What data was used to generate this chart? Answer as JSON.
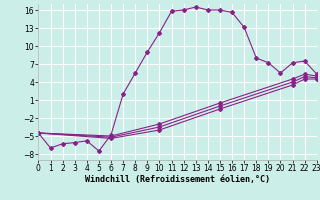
{
  "xlabel": "Windchill (Refroidissement éolien,°C)",
  "background_color": "#cceee8",
  "grid_color": "#ffffff",
  "line_color": "#882288",
  "series1_x": [
    0,
    1,
    2,
    3,
    4,
    5,
    6,
    7,
    8,
    9,
    10,
    11,
    12,
    13,
    14,
    15,
    16,
    17,
    18,
    19,
    20,
    21,
    22,
    23
  ],
  "series1_y": [
    -4.5,
    -7.0,
    -6.3,
    -6.1,
    -5.8,
    -7.5,
    -4.8,
    2.0,
    5.5,
    9.0,
    12.2,
    15.8,
    16.0,
    16.5,
    16.0,
    16.0,
    15.6,
    13.1,
    8.0,
    7.2,
    5.5,
    7.2,
    7.5,
    5.3
  ],
  "series2_x": [
    0,
    6,
    10,
    15,
    21,
    22,
    23
  ],
  "series2_y": [
    -4.5,
    -5.0,
    -3.0,
    0.5,
    4.5,
    5.3,
    5.0
  ],
  "series3_x": [
    0,
    6,
    10,
    15,
    21,
    22,
    23
  ],
  "series3_y": [
    -4.5,
    -5.2,
    -3.5,
    0.0,
    4.0,
    4.9,
    4.7
  ],
  "series4_x": [
    0,
    6,
    10,
    15,
    21,
    22,
    23
  ],
  "series4_y": [
    -4.5,
    -5.4,
    -4.0,
    -0.5,
    3.5,
    4.5,
    4.5
  ],
  "ylim": [
    -9,
    17
  ],
  "xlim": [
    0,
    23
  ],
  "yticks": [
    -8,
    -5,
    -2,
    1,
    4,
    7,
    10,
    13,
    16
  ],
  "xticks": [
    0,
    1,
    2,
    3,
    4,
    5,
    6,
    7,
    8,
    9,
    10,
    11,
    12,
    13,
    14,
    15,
    16,
    17,
    18,
    19,
    20,
    21,
    22,
    23
  ],
  "xlabel_fontsize": 6.0,
  "tick_fontsize": 5.5
}
